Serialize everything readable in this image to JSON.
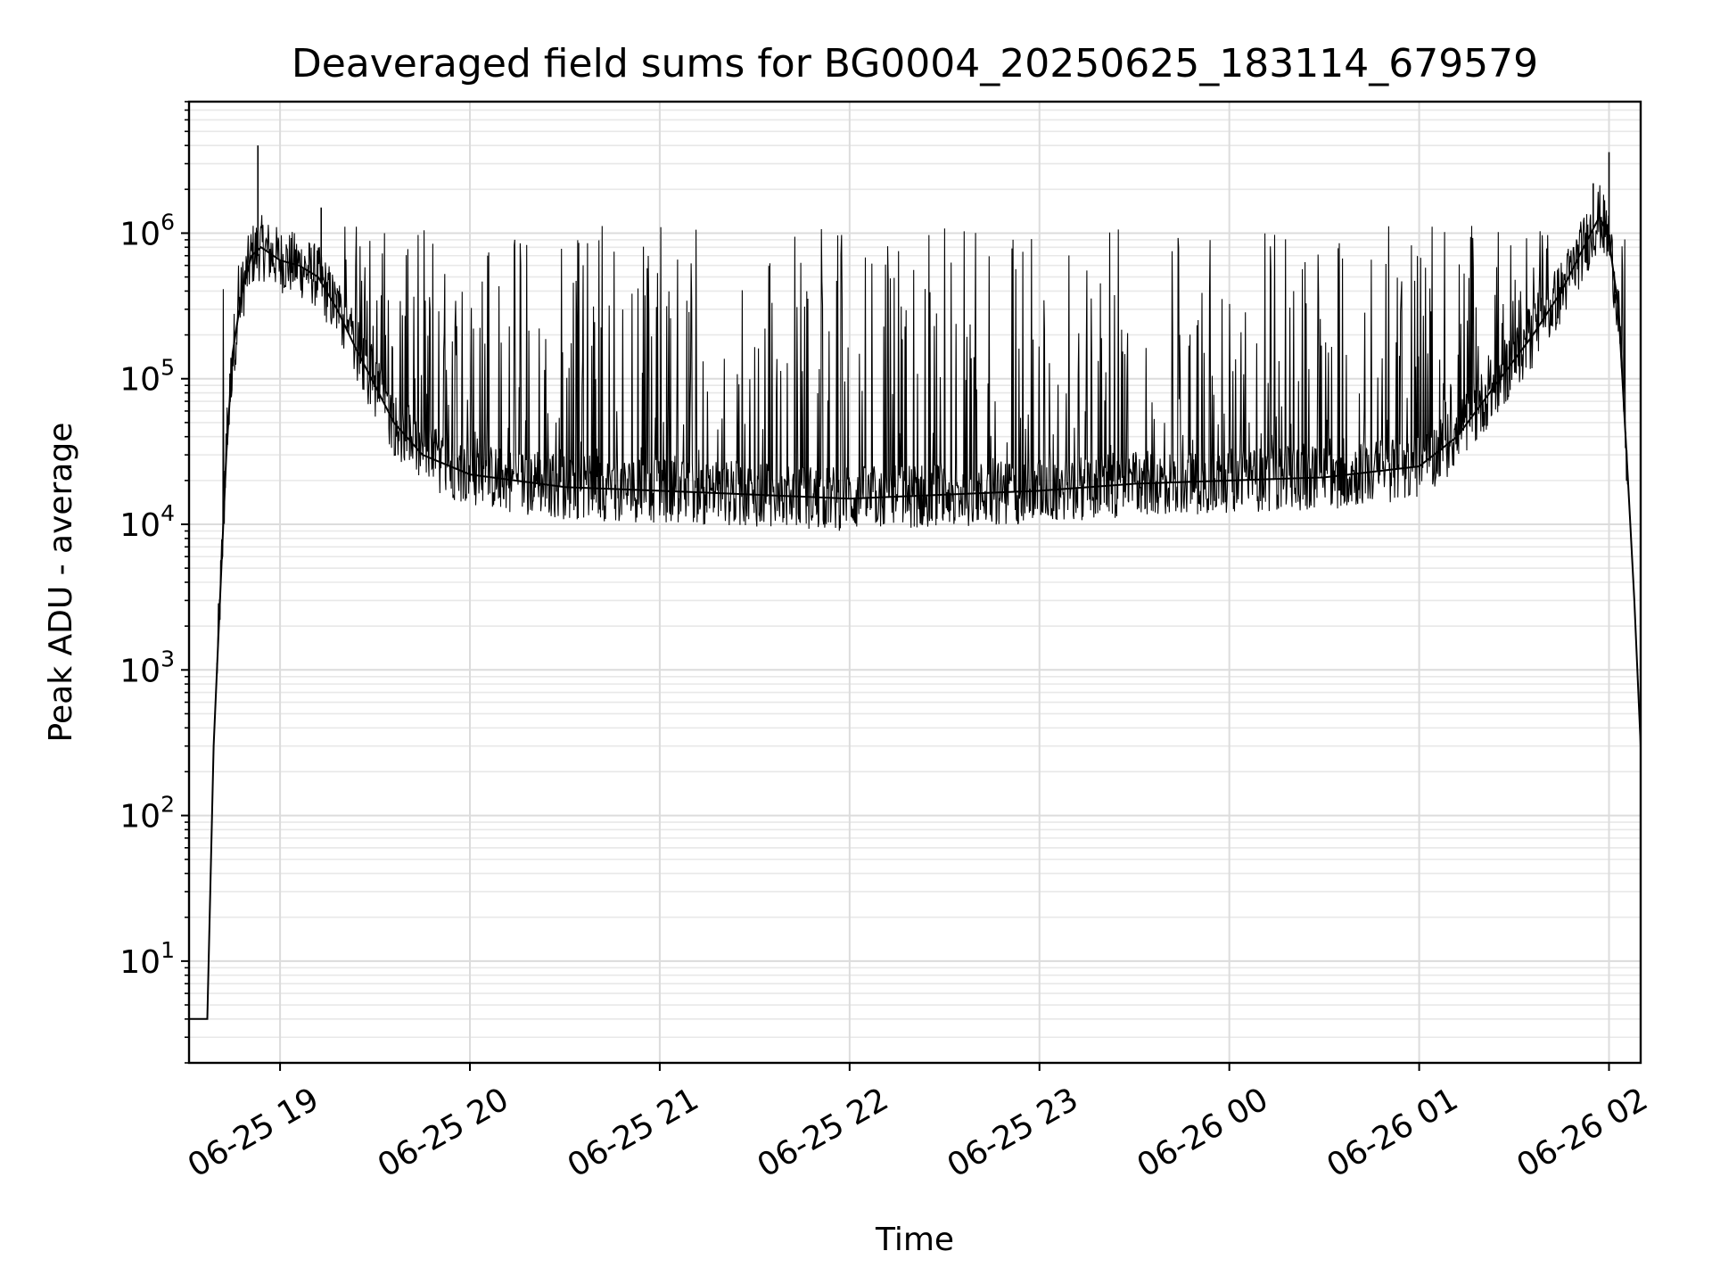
{
  "chart_data": {
    "type": "line",
    "title": "Deaveraged field sums for BG0004_20250625_183114_679579",
    "xlabel": "Time",
    "ylabel": "Peak ADU - average",
    "yscale": "log",
    "xlim": [
      "06-25 18:31:14",
      "06-26 02:10:00"
    ],
    "ylim": [
      2,
      8000000
    ],
    "grid": true,
    "x_ticks": [
      {
        "label": "06-25 19",
        "value": "06-25 19:00"
      },
      {
        "label": "06-25 20",
        "value": "06-25 20:00"
      },
      {
        "label": "06-25 21",
        "value": "06-25 21:00"
      },
      {
        "label": "06-25 22",
        "value": "06-25 22:00"
      },
      {
        "label": "06-25 23",
        "value": "06-25 23:00"
      },
      {
        "label": "06-26 00",
        "value": "06-26 00:00"
      },
      {
        "label": "06-26 01",
        "value": "06-26 01:00"
      },
      {
        "label": "06-26 02",
        "value": "06-26 02:00"
      }
    ],
    "y_ticks": [
      {
        "base": "10",
        "exp": "1",
        "value": 10
      },
      {
        "base": "10",
        "exp": "2",
        "value": 100
      },
      {
        "base": "10",
        "exp": "3",
        "value": 1000
      },
      {
        "base": "10",
        "exp": "4",
        "value": 10000
      },
      {
        "base": "10",
        "exp": "5",
        "value": 100000
      },
      {
        "base": "10",
        "exp": "6",
        "value": 1000000
      }
    ],
    "series": [
      {
        "color": "#000000",
        "x": [
          "06-25 18:31",
          "06-25 18:33",
          "06-25 18:35",
          "06-25 18:37",
          "06-25 18:39",
          "06-25 18:41",
          "06-25 18:43",
          "06-25 18:45",
          "06-25 18:48",
          "06-25 18:51",
          "06-25 18:54",
          "06-25 19:00",
          "06-25 19:06",
          "06-25 19:12",
          "06-25 19:18",
          "06-25 19:24",
          "06-25 19:30",
          "06-25 19:36",
          "06-25 19:45",
          "06-25 20:00",
          "06-25 20:30",
          "06-25 21:00",
          "06-25 21:30",
          "06-25 22:00",
          "06-25 22:30",
          "06-25 23:00",
          "06-25 23:30",
          "06-26 00:00",
          "06-26 00:30",
          "06-26 01:00",
          "06-26 01:12",
          "06-26 01:24",
          "06-26 01:36",
          "06-26 01:45",
          "06-26 01:52",
          "06-26 01:57",
          "06-26 02:00",
          "06-26 02:03",
          "06-26 02:06",
          "06-26 02:08",
          "06-26 02:10"
        ],
        "y": [
          4,
          4,
          4,
          4,
          300,
          3000,
          30000,
          150000,
          400000,
          700000,
          800000,
          650000,
          600000,
          500000,
          300000,
          160000,
          90000,
          50000,
          30000,
          22000,
          18000,
          17000,
          16000,
          15000,
          16000,
          17000,
          19000,
          20000,
          21000,
          25000,
          40000,
          90000,
          200000,
          400000,
          800000,
          1300000,
          900000,
          300000,
          20000,
          3000,
          300
        ]
      }
    ],
    "spikes_typical_top": 1000000,
    "spike_extremes": [
      {
        "x": "06-25 18:53",
        "y": 4000000
      },
      {
        "x": "06-26 02:00",
        "y": 3600000
      },
      {
        "x": "06-26 01:55",
        "y": 2200000
      },
      {
        "x": "06-25 19:13",
        "y": 1500000
      }
    ]
  }
}
